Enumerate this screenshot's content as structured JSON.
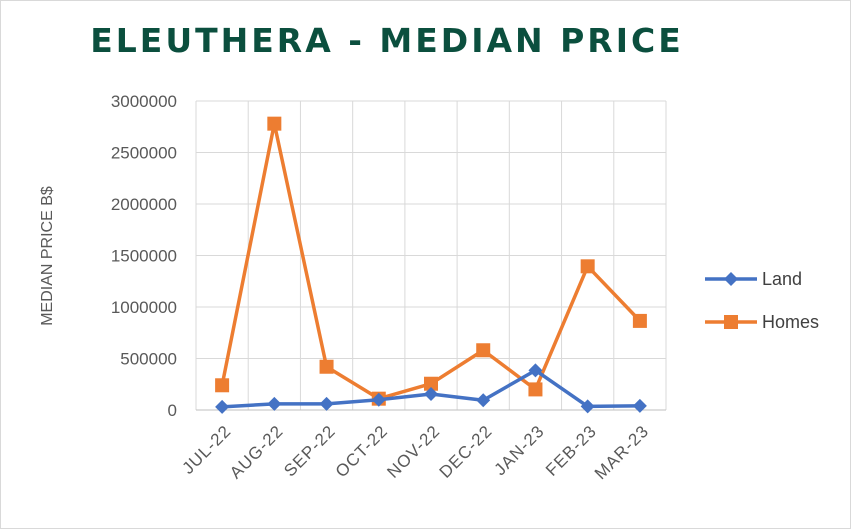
{
  "chart_data": {
    "type": "line",
    "title": "ELEUTHERA - MEDIAN PRICE",
    "ylabel": "MEDIAN PRICE B$",
    "xlabel": "",
    "categories": [
      "JUL-22",
      "AUG-22",
      "SEP-22",
      "OCT-22",
      "NOV-22",
      "DEC-22",
      "JAN-23",
      "FEB-23",
      "MAR-23"
    ],
    "ylim": [
      0,
      3000000
    ],
    "yticks": [
      "0",
      "500000",
      "1000000",
      "1500000",
      "2000000",
      "2500000",
      "3000000"
    ],
    "ytick_values": [
      0,
      500000,
      1000000,
      1500000,
      2000000,
      2500000,
      3000000
    ],
    "grid": true,
    "legend": "right",
    "series": [
      {
        "name": "Land",
        "color": "#4472c4",
        "marker": "diamond",
        "values": [
          30000,
          60000,
          60000,
          100000,
          155000,
          95000,
          385000,
          35000,
          40000
        ]
      },
      {
        "name": "Homes",
        "color": "#ed7d31",
        "marker": "square",
        "values": [
          240000,
          2780000,
          420000,
          110000,
          255000,
          580000,
          200000,
          1395000,
          865000
        ]
      }
    ]
  }
}
